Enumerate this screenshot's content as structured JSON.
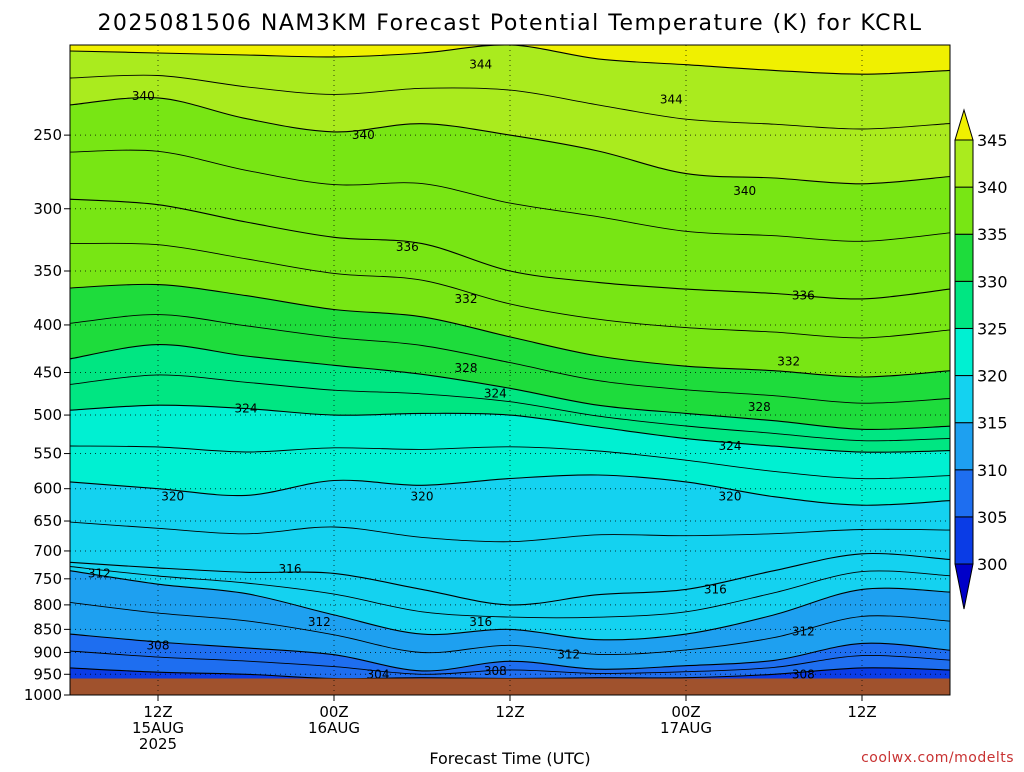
{
  "chart_data": {
    "type": "contour",
    "title": "2025081506 NAM3KM Forecast Potential Temperature (K) for KCRL",
    "xlabel": "Forecast Time (UTC)",
    "ylabel": "",
    "credit": "coolwx.com/modelts",
    "y_axis": {
      "scale": "log",
      "reversed": true,
      "range": [
        1000,
        200
      ],
      "ticks": [
        250,
        300,
        350,
        400,
        450,
        500,
        550,
        600,
        650,
        700,
        750,
        800,
        850,
        900,
        950,
        1000
      ]
    },
    "x_axis": {
      "range_hours": [
        0,
        60
      ],
      "ticks": [
        {
          "hour": 6,
          "lines": [
            "12Z",
            "15AUG",
            "2025"
          ]
        },
        {
          "hour": 18,
          "lines": [
            "00Z",
            "16AUG"
          ]
        },
        {
          "hour": 30,
          "lines": [
            "12Z"
          ]
        },
        {
          "hour": 42,
          "lines": [
            "00Z",
            "17AUG"
          ]
        },
        {
          "hour": 54,
          "lines": [
            "12Z"
          ]
        }
      ]
    },
    "grid": true,
    "ground_color": "#a0522d",
    "ground_top_hpa": 960,
    "colorbar": {
      "levels": [
        300,
        305,
        310,
        315,
        320,
        325,
        330,
        335,
        340,
        345
      ],
      "labels": [
        "300",
        "305",
        "310",
        "315",
        "320",
        "325",
        "330",
        "335",
        "340",
        "345"
      ],
      "colors": [
        "#0000c8",
        "#0a3ce6",
        "#1e6ef0",
        "#1ea0f0",
        "#14d2f0",
        "#00f0d2",
        "#00e682",
        "#1edc3c",
        "#78e614",
        "#aaeb1e",
        "#f0f000"
      ],
      "extend": "both"
    },
    "isotherm_columns_hours": [
      0,
      6,
      12,
      18,
      24,
      30,
      36,
      42,
      48,
      54,
      60
    ],
    "isotherms": [
      {
        "theta": 344,
        "p": [
          203,
          204,
          205,
          206,
          204,
          200,
          207,
          210,
          213,
          215,
          213
        ]
      },
      {
        "theta": 340,
        "p": [
          232,
          228,
          240,
          248,
          243,
          250,
          260,
          275,
          278,
          282,
          277
        ]
      },
      {
        "theta": 336,
        "p": [
          293,
          297,
          310,
          322,
          327,
          350,
          360,
          366,
          370,
          375,
          366
        ]
      },
      {
        "theta": 332,
        "p": [
          365,
          362,
          372,
          385,
          392,
          412,
          432,
          443,
          448,
          455,
          448
        ]
      },
      {
        "theta": 328,
        "p": [
          435,
          420,
          432,
          442,
          452,
          468,
          488,
          498,
          507,
          518,
          514
        ]
      },
      {
        "theta": 324,
        "p": [
          494,
          488,
          492,
          500,
          498,
          500,
          515,
          530,
          540,
          548,
          546
        ]
      },
      {
        "theta": 320,
        "p": [
          590,
          600,
          610,
          588,
          595,
          585,
          580,
          590,
          612,
          625,
          618
        ]
      },
      {
        "theta": 316,
        "p": [
          720,
          730,
          738,
          740,
          770,
          800,
          780,
          770,
          735,
          705,
          715
        ]
      },
      {
        "theta": 312,
        "p": [
          735,
          760,
          778,
          820,
          860,
          850,
          872,
          860,
          820,
          770,
          775
        ]
      },
      {
        "theta": 308,
        "p": [
          860,
          877,
          890,
          905,
          942,
          920,
          938,
          930,
          918,
          880,
          895
        ]
      },
      {
        "theta": 304,
        "p": [
          935,
          945,
          950,
          960,
          958,
          960,
          958,
          958,
          950,
          935,
          940
        ]
      }
    ],
    "contour_labels": [
      {
        "text": "344",
        "hour": 28,
        "p": 210
      },
      {
        "text": "344",
        "hour": 41,
        "p": 229
      },
      {
        "text": "340",
        "hour": 5,
        "p": 227
      },
      {
        "text": "340",
        "hour": 20,
        "p": 250
      },
      {
        "text": "340",
        "hour": 46,
        "p": 287
      },
      {
        "text": "336",
        "hour": 23,
        "p": 330
      },
      {
        "text": "336",
        "hour": 50,
        "p": 372
      },
      {
        "text": "332",
        "hour": 27,
        "p": 375
      },
      {
        "text": "332",
        "hour": 49,
        "p": 438
      },
      {
        "text": "328",
        "hour": 27,
        "p": 445
      },
      {
        "text": "328",
        "hour": 47,
        "p": 490
      },
      {
        "text": "324",
        "hour": 12,
        "p": 492
      },
      {
        "text": "324",
        "hour": 29,
        "p": 474
      },
      {
        "text": "324",
        "hour": 45,
        "p": 540
      },
      {
        "text": "320",
        "hour": 7,
        "p": 612
      },
      {
        "text": "320",
        "hour": 24,
        "p": 612
      },
      {
        "text": "320",
        "hour": 45,
        "p": 612
      },
      {
        "text": "316",
        "hour": 15,
        "p": 732
      },
      {
        "text": "316",
        "hour": 28,
        "p": 835
      },
      {
        "text": "316",
        "hour": 44,
        "p": 770
      },
      {
        "text": "312",
        "hour": 2,
        "p": 740
      },
      {
        "text": "312",
        "hour": 17,
        "p": 835
      },
      {
        "text": "312",
        "hour": 34,
        "p": 905
      },
      {
        "text": "312",
        "hour": 50,
        "p": 855
      },
      {
        "text": "308",
        "hour": 6,
        "p": 885
      },
      {
        "text": "308",
        "hour": 29,
        "p": 942
      },
      {
        "text": "308",
        "hour": 50,
        "p": 950
      },
      {
        "text": "304",
        "hour": 21,
        "p": 950
      }
    ]
  }
}
